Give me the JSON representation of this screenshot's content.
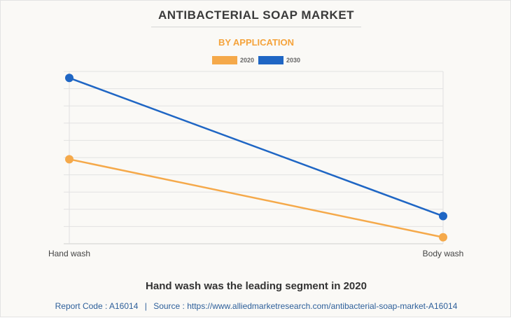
{
  "title": "ANTIBACTERIAL SOAP MARKET",
  "subtitle": "BY APPLICATION",
  "headline": "Hand wash was the leading segment in 2020",
  "footer": {
    "report_code": "Report Code : A16014",
    "separator": "|",
    "source": "Source : https://www.alliedmarketresearch.com/antibacterial-soap-market-A16014"
  },
  "colors": {
    "series_2020": "#f5a94a",
    "series_2030": "#1f66c4",
    "subtitle": "#f5a33b",
    "grid": "#e2e2e2"
  },
  "chart_data": {
    "type": "line",
    "title": "ANTIBACTERIAL SOAP MARKET",
    "subtitle": "BY APPLICATION",
    "categories": [
      "Hand wash",
      "Body wash"
    ],
    "series": [
      {
        "name": "2020",
        "values": [
          5.2,
          0.4
        ]
      },
      {
        "name": "2030",
        "values": [
          10.2,
          1.7
        ]
      }
    ],
    "ylim": [
      0,
      10.6
    ],
    "y_gridlines": 10,
    "y_axis_labels_shown": false,
    "xlabel": "",
    "ylabel": "",
    "legend": "top-center",
    "grid": true
  }
}
